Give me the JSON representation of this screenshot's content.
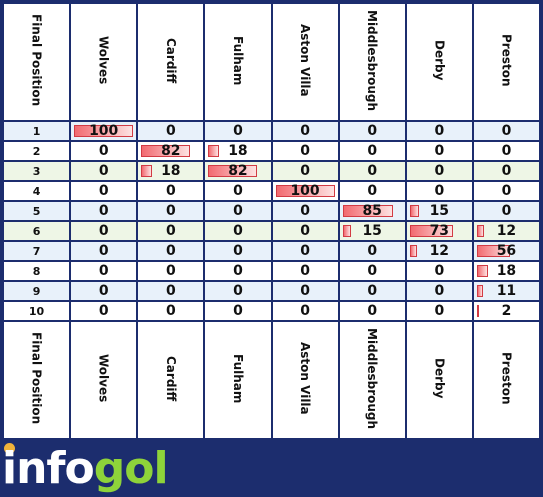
{
  "columns": [
    "Final Position",
    "Wolves",
    "Cardiff",
    "Fulham",
    "Aston Villa",
    "Middlesbrough",
    "Derby",
    "Preston"
  ],
  "rows": [
    {
      "pos": "1",
      "vals": [
        "100",
        "0",
        "0",
        "0",
        "0",
        "0",
        "0"
      ]
    },
    {
      "pos": "2",
      "vals": [
        "0",
        "82",
        "18",
        "0",
        "0",
        "0",
        "0"
      ]
    },
    {
      "pos": "3",
      "vals": [
        "0",
        "18",
        "82",
        "0",
        "0",
        "0",
        "0"
      ]
    },
    {
      "pos": "4",
      "vals": [
        "0",
        "0",
        "0",
        "100",
        "0",
        "0",
        "0"
      ]
    },
    {
      "pos": "5",
      "vals": [
        "0",
        "0",
        "0",
        "0",
        "85",
        "15",
        "0"
      ]
    },
    {
      "pos": "6",
      "vals": [
        "0",
        "0",
        "0",
        "0",
        "15",
        "73",
        "12"
      ]
    },
    {
      "pos": "7",
      "vals": [
        "0",
        "0",
        "0",
        "0",
        "0",
        "12",
        "56"
      ]
    },
    {
      "pos": "8",
      "vals": [
        "0",
        "0",
        "0",
        "0",
        "0",
        "0",
        "18"
      ]
    },
    {
      "pos": "9",
      "vals": [
        "0",
        "0",
        "0",
        "0",
        "0",
        "0",
        "11"
      ]
    },
    {
      "pos": "10",
      "vals": [
        "0",
        "0",
        "0",
        "0",
        "0",
        "0",
        "2"
      ]
    }
  ],
  "logo": {
    "part1": "info",
    "part2": "gol"
  },
  "colors": {
    "frame": "#1c2d6e",
    "bar": "#f26a70",
    "logo_green": "#8ed33a",
    "logo_white": "#ffffff"
  }
}
